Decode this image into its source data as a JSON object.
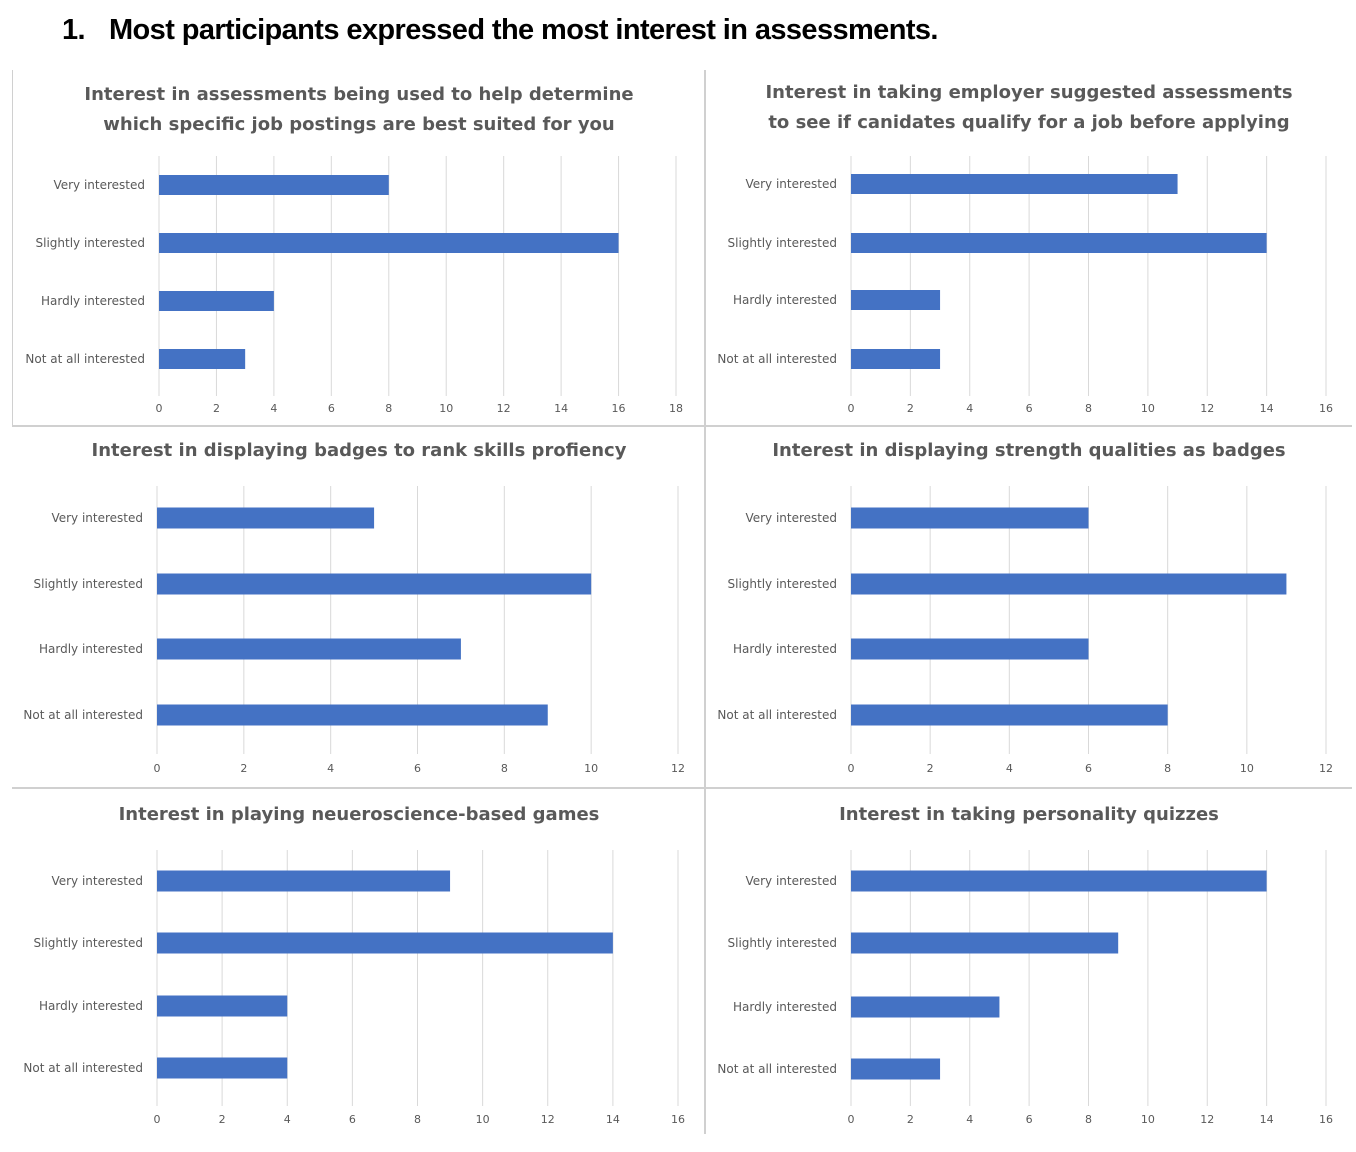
{
  "heading": {
    "number": "1.",
    "text": "Most participants expressed the most interest in assessments."
  },
  "colors": {
    "bar": "#4472c4",
    "grid": "#d9d9d9",
    "title": "#595959",
    "label": "#595959"
  },
  "chart_data": [
    {
      "type": "bar",
      "orientation": "horizontal",
      "title": "Interest in assessments being used to help  determine which specific job postings are best suited for you",
      "title_lines": [
        "Interest in assessments being used to help  determine",
        "which specific job postings are best suited for you"
      ],
      "categories": [
        "Very interested",
        "Slightly interested",
        "Hardly interested",
        "Not at all interested"
      ],
      "values": [
        8,
        16,
        4,
        3
      ],
      "xlim": [
        0,
        18
      ],
      "xticks": [
        "0",
        "2",
        "4",
        "6",
        "8",
        "10",
        "12",
        "14",
        "16",
        "18"
      ],
      "grid": true
    },
    {
      "type": "bar",
      "orientation": "horizontal",
      "title": "Interest in taking employer suggested assessments to see if canidates qualify for a job before applying",
      "title_lines": [
        "Interest in taking employer suggested assessments",
        "to see if canidates qualify for a job before applying"
      ],
      "categories": [
        "Very interested",
        "Slightly interested",
        "Hardly interested",
        "Not at all interested"
      ],
      "values": [
        11,
        14,
        3,
        3
      ],
      "xlim": [
        0,
        16
      ],
      "xticks": [
        "0",
        "2",
        "4",
        "6",
        "8",
        "10",
        "12",
        "14",
        "16"
      ],
      "grid": true
    },
    {
      "type": "bar",
      "orientation": "horizontal",
      "title": "Interest in displaying badges to rank skills profiency",
      "title_lines": [
        "Interest in displaying badges to rank skills profiency"
      ],
      "categories": [
        "Very interested",
        "Slightly interested",
        "Hardly interested",
        "Not at all interested"
      ],
      "values": [
        5,
        10,
        7,
        9
      ],
      "xlim": [
        0,
        12
      ],
      "xticks": [
        "0",
        "2",
        "4",
        "6",
        "8",
        "10",
        "12"
      ],
      "grid": true
    },
    {
      "type": "bar",
      "orientation": "horizontal",
      "title": "Interest in displaying strength qualities as badges",
      "title_lines": [
        "Interest in displaying strength qualities as badges"
      ],
      "categories": [
        "Very interested",
        "Slightly interested",
        "Hardly interested",
        "Not at all interested"
      ],
      "values": [
        6,
        11,
        6,
        8
      ],
      "xlim": [
        0,
        12
      ],
      "xticks": [
        "0",
        "2",
        "4",
        "6",
        "8",
        "10",
        "12"
      ],
      "grid": true
    },
    {
      "type": "bar",
      "orientation": "horizontal",
      "title": "Interest in playing neueroscience-based games",
      "title_lines": [
        "Interest in playing neueroscience-based games"
      ],
      "categories": [
        "Very interested",
        "Slightly interested",
        "Hardly interested",
        "Not at all interested"
      ],
      "values": [
        9,
        14,
        4,
        4
      ],
      "xlim": [
        0,
        16
      ],
      "xticks": [
        "0",
        "2",
        "4",
        "6",
        "8",
        "10",
        "12",
        "14",
        "16"
      ],
      "grid": true
    },
    {
      "type": "bar",
      "orientation": "horizontal",
      "title": "Interest in taking personality quizzes",
      "title_lines": [
        "Interest in taking personality quizzes"
      ],
      "categories": [
        "Very interested",
        "Slightly interested",
        "Hardly interested",
        "Not at all interested"
      ],
      "values": [
        14,
        9,
        5,
        3
      ],
      "xlim": [
        0,
        16
      ],
      "xticks": [
        "0",
        "2",
        "4",
        "6",
        "8",
        "10",
        "12",
        "14",
        "16"
      ],
      "grid": true
    }
  ]
}
